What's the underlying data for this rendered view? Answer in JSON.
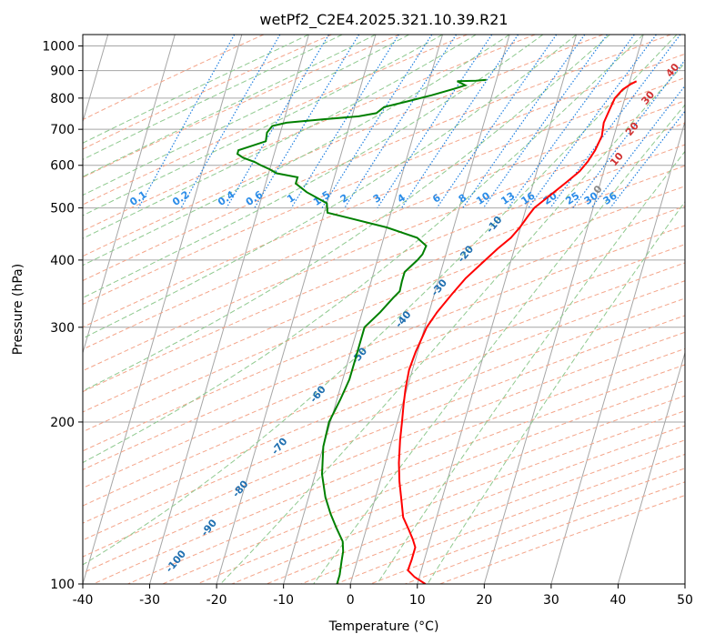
{
  "chart_data": {
    "type": "line",
    "title": "wetPf2_C2E4.2025.321.10.39.R21",
    "xlabel": "Temperature (°C)",
    "ylabel": "Pressure (hPa)",
    "xlim": [
      -40,
      50
    ],
    "ylim": [
      1050,
      100
    ],
    "yscale": "log",
    "xticks": [
      -40,
      -30,
      -20,
      -10,
      0,
      10,
      20,
      30,
      40,
      50
    ],
    "yticks": [
      1000,
      900,
      800,
      700,
      600,
      500,
      400,
      300,
      200,
      100
    ],
    "grid": true,
    "series": [
      {
        "role": "temperature",
        "color": "#ff0000",
        "points": [
          [
            21.0,
            860
          ],
          [
            20.3,
            850
          ],
          [
            19.3,
            830
          ],
          [
            18.5,
            800
          ],
          [
            18.2,
            760
          ],
          [
            17.9,
            720
          ],
          [
            18.2,
            680
          ],
          [
            17.8,
            640
          ],
          [
            17.2,
            610
          ],
          [
            16.4,
            585
          ],
          [
            15.0,
            560
          ],
          [
            13.5,
            535
          ],
          [
            12.2,
            515
          ],
          [
            11.2,
            500
          ],
          [
            10.7,
            485
          ],
          [
            9.9,
            460
          ],
          [
            9.0,
            440
          ],
          [
            7.5,
            420
          ],
          [
            5.8,
            395
          ],
          [
            4.0,
            370
          ],
          [
            2.6,
            345
          ],
          [
            1.2,
            320
          ],
          [
            0.3,
            300
          ],
          [
            -0.3,
            270
          ],
          [
            -0.5,
            250
          ],
          [
            -0.2,
            230
          ],
          [
            0.2,
            215
          ],
          [
            0.7,
            200
          ],
          [
            1.2,
            185
          ],
          [
            2.0,
            168
          ],
          [
            2.9,
            155
          ],
          [
            4.1,
            142
          ],
          [
            5.0,
            133
          ],
          [
            6.4,
            126
          ],
          [
            7.4,
            121
          ],
          [
            8.1,
            117
          ],
          [
            8.1,
            111
          ],
          [
            8.0,
            106
          ],
          [
            9.3,
            103
          ],
          [
            11.2,
            100
          ]
        ]
      },
      {
        "role": "dewpoint",
        "color": "#008000",
        "points": [
          [
            -1.5,
            865
          ],
          [
            -3.0,
            862
          ],
          [
            -5.8,
            860
          ],
          [
            -4.4,
            845
          ],
          [
            -6.0,
            832
          ],
          [
            -9.0,
            810
          ],
          [
            -12.2,
            790
          ],
          [
            -15.6,
            770
          ],
          [
            -16.5,
            750
          ],
          [
            -19.0,
            740
          ],
          [
            -24.5,
            730
          ],
          [
            -29.5,
            720
          ],
          [
            -31.5,
            710
          ],
          [
            -32.0,
            690
          ],
          [
            -31.8,
            665
          ],
          [
            -34.0,
            650
          ],
          [
            -35.5,
            640
          ],
          [
            -35.5,
            630
          ],
          [
            -34.5,
            620
          ],
          [
            -32.5,
            608
          ],
          [
            -31.5,
            600
          ],
          [
            -30.0,
            590
          ],
          [
            -28.8,
            580
          ],
          [
            -25.5,
            570
          ],
          [
            -25.5,
            555
          ],
          [
            -24.5,
            545
          ],
          [
            -23.5,
            535
          ],
          [
            -20.0,
            510
          ],
          [
            -19.5,
            490
          ],
          [
            -10.0,
            460
          ],
          [
            -5.0,
            440
          ],
          [
            -3.3,
            425
          ],
          [
            -3.5,
            410
          ],
          [
            -4.0,
            400
          ],
          [
            -5.4,
            380
          ],
          [
            -5.4,
            365
          ],
          [
            -5.3,
            350
          ],
          [
            -6.0,
            340
          ],
          [
            -7.3,
            320
          ],
          [
            -9.0,
            300
          ],
          [
            -9.0,
            280
          ],
          [
            -9.0,
            260
          ],
          [
            -9.0,
            240
          ],
          [
            -9.5,
            220
          ],
          [
            -10.2,
            200
          ],
          [
            -10.0,
            180
          ],
          [
            -9.0,
            160
          ],
          [
            -7.5,
            145
          ],
          [
            -6.0,
            135
          ],
          [
            -4.5,
            127
          ],
          [
            -3.0,
            120
          ],
          [
            -2.5,
            115
          ],
          [
            -2.3,
            110
          ],
          [
            -2.0,
            104
          ],
          [
            -2.0,
            100
          ]
        ]
      }
    ],
    "mixing_ratio_labels": [
      "0.1",
      "0.2",
      "0.4",
      "0.6",
      "1",
      "1.5",
      "2",
      "3",
      "4",
      "6",
      "8",
      "10",
      "13",
      "16",
      "20",
      "25",
      "30",
      "36"
    ],
    "dry_adiabat_labels": [
      "-100",
      "-90",
      "-80",
      "-70",
      "-60",
      "-50",
      "-40",
      "-30",
      "-20",
      "-10"
    ],
    "moist_adiabat_labels": [
      "0",
      "10",
      "20",
      "30",
      "40"
    ],
    "colors": {
      "temperature": "#ff0000",
      "dewpoint": "#008000",
      "isotherm": "#a6a6a6",
      "dry_adiabat": "#f4a58a",
      "moist_adiabat": "#8fc98f",
      "mixing_ratio": "#1e7fe0",
      "mixing_label": "#2a8ce8",
      "dry_label": "#1f6fb0",
      "moist_label": "#d03030"
    }
  }
}
